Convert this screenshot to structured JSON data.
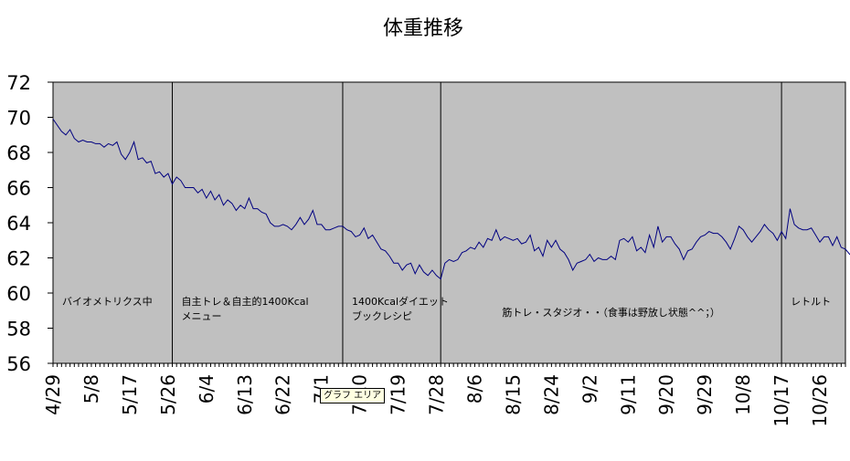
{
  "chart_data": {
    "type": "line",
    "title": "体重推移",
    "ylim": [
      56,
      72
    ],
    "yticks": [
      56,
      58,
      60,
      62,
      64,
      66,
      68,
      70,
      72
    ],
    "x_tick_labels": [
      "4/29",
      "5/8",
      "5/17",
      "5/26",
      "6/4",
      "6/13",
      "6/22",
      "7/1",
      "7/10",
      "7/19",
      "7/28",
      "8/6",
      "8/15",
      "8/24",
      "9/2",
      "9/11",
      "9/20",
      "9/29",
      "10/8",
      "10/17",
      "10/26"
    ],
    "x_start": "4/29",
    "x_end": "11/1",
    "grid": false,
    "plot_background": "#c0c0c0",
    "line_color": "#000080",
    "phases": [
      {
        "label_lines": [
          "バイオメトリクス中"
        ],
        "start": "4/29"
      },
      {
        "label_lines": [
          "自主トレ＆自主的1400Kcal",
          "メニュー"
        ],
        "start": "5/27"
      },
      {
        "label_lines": [
          "1400Kcalダイエット",
          "ブックレシピ"
        ],
        "start": "7/6"
      },
      {
        "label_lines": [
          "筋トレ・スタジオ・・（食事は野放し状態^^；）"
        ],
        "start": "7/29"
      },
      {
        "label_lines": [
          "レトルト"
        ],
        "start": "10/17"
      }
    ],
    "series": [
      {
        "values": [
          [
            0,
            69.9
          ],
          [
            2,
            69.2
          ],
          [
            3,
            69.0
          ],
          [
            4,
            69.3
          ],
          [
            5,
            68.8
          ],
          [
            6,
            68.6
          ],
          [
            7,
            68.7
          ],
          [
            8,
            68.6
          ],
          [
            9,
            68.6
          ],
          [
            10,
            68.5
          ],
          [
            11,
            68.5
          ],
          [
            12,
            68.3
          ],
          [
            13,
            68.5
          ],
          [
            14,
            68.4
          ],
          [
            15,
            68.6
          ],
          [
            16,
            67.9
          ],
          [
            17,
            67.6
          ],
          [
            18,
            68.0
          ],
          [
            19,
            68.6
          ],
          [
            20,
            67.6
          ],
          [
            21,
            67.7
          ],
          [
            22,
            67.4
          ],
          [
            23,
            67.5
          ],
          [
            24,
            66.8
          ],
          [
            25,
            66.9
          ],
          [
            26,
            66.6
          ],
          [
            27,
            66.8
          ],
          [
            28,
            66.2
          ],
          [
            29,
            66.6
          ],
          [
            30,
            66.4
          ],
          [
            31,
            66.0
          ],
          [
            32,
            66.0
          ],
          [
            33,
            66.0
          ],
          [
            34,
            65.7
          ],
          [
            35,
            65.9
          ],
          [
            36,
            65.4
          ],
          [
            37,
            65.8
          ],
          [
            38,
            65.3
          ],
          [
            39,
            65.6
          ],
          [
            40,
            65.0
          ],
          [
            41,
            65.3
          ],
          [
            42,
            65.1
          ],
          [
            43,
            64.7
          ],
          [
            44,
            65.0
          ],
          [
            45,
            64.8
          ],
          [
            46,
            65.4
          ],
          [
            47,
            64.8
          ],
          [
            48,
            64.8
          ],
          [
            49,
            64.6
          ],
          [
            50,
            64.5
          ],
          [
            51,
            64.0
          ],
          [
            52,
            63.8
          ],
          [
            53,
            63.8
          ],
          [
            54,
            63.9
          ],
          [
            55,
            63.8
          ],
          [
            56,
            63.6
          ],
          [
            57,
            63.9
          ],
          [
            58,
            64.3
          ],
          [
            59,
            63.9
          ],
          [
            60,
            64.2
          ],
          [
            61,
            64.7
          ],
          [
            62,
            63.9
          ],
          [
            63,
            63.9
          ],
          [
            64,
            63.6
          ],
          [
            65,
            63.6
          ],
          [
            66,
            63.7
          ],
          [
            67,
            63.8
          ],
          [
            68,
            63.8
          ],
          [
            69,
            63.6
          ],
          [
            70,
            63.5
          ],
          [
            71,
            63.2
          ],
          [
            72,
            63.3
          ],
          [
            73,
            63.7
          ],
          [
            74,
            63.1
          ],
          [
            75,
            63.3
          ],
          [
            76,
            62.9
          ],
          [
            77,
            62.5
          ],
          [
            78,
            62.4
          ],
          [
            79,
            62.1
          ],
          [
            80,
            61.7
          ],
          [
            81,
            61.7
          ],
          [
            82,
            61.3
          ],
          [
            83,
            61.6
          ],
          [
            84,
            61.7
          ],
          [
            85,
            61.1
          ],
          [
            86,
            61.6
          ],
          [
            87,
            61.2
          ],
          [
            88,
            61.0
          ],
          [
            89,
            61.3
          ],
          [
            90,
            61.0
          ],
          [
            91,
            60.8
          ],
          [
            92,
            61.7
          ],
          [
            93,
            61.9
          ],
          [
            94,
            61.8
          ],
          [
            95,
            61.9
          ],
          [
            96,
            62.3
          ],
          [
            97,
            62.4
          ],
          [
            98,
            62.6
          ],
          [
            99,
            62.5
          ],
          [
            100,
            62.9
          ],
          [
            101,
            62.6
          ],
          [
            102,
            63.1
          ],
          [
            103,
            63.0
          ],
          [
            104,
            63.6
          ],
          [
            105,
            63.0
          ],
          [
            106,
            63.2
          ],
          [
            107,
            63.1
          ],
          [
            108,
            63.0
          ],
          [
            109,
            63.1
          ],
          [
            110,
            62.8
          ],
          [
            111,
            62.9
          ],
          [
            112,
            63.3
          ],
          [
            113,
            62.4
          ],
          [
            114,
            62.6
          ],
          [
            115,
            62.1
          ],
          [
            116,
            63.0
          ],
          [
            117,
            62.6
          ],
          [
            118,
            63.0
          ],
          [
            119,
            62.5
          ],
          [
            120,
            62.3
          ],
          [
            121,
            61.9
          ],
          [
            122,
            61.3
          ],
          [
            123,
            61.7
          ],
          [
            124,
            61.8
          ],
          [
            125,
            61.9
          ],
          [
            126,
            62.2
          ],
          [
            127,
            61.8
          ],
          [
            128,
            62.0
          ],
          [
            129,
            61.9
          ],
          [
            130,
            61.9
          ],
          [
            131,
            62.1
          ],
          [
            132,
            61.9
          ],
          [
            133,
            63.0
          ],
          [
            134,
            63.1
          ],
          [
            135,
            62.9
          ],
          [
            136,
            63.2
          ],
          [
            137,
            62.4
          ],
          [
            138,
            62.6
          ],
          [
            139,
            62.3
          ],
          [
            140,
            63.3
          ],
          [
            141,
            62.6
          ],
          [
            142,
            63.8
          ],
          [
            143,
            62.9
          ],
          [
            144,
            63.2
          ],
          [
            145,
            63.2
          ],
          [
            146,
            62.8
          ],
          [
            147,
            62.5
          ],
          [
            148,
            61.9
          ],
          [
            149,
            62.4
          ],
          [
            150,
            62.5
          ],
          [
            151,
            62.9
          ],
          [
            152,
            63.2
          ],
          [
            153,
            63.3
          ],
          [
            154,
            63.5
          ],
          [
            155,
            63.4
          ],
          [
            156,
            63.4
          ],
          [
            157,
            63.2
          ],
          [
            158,
            62.9
          ],
          [
            159,
            62.5
          ],
          [
            160,
            63.1
          ],
          [
            161,
            63.8
          ],
          [
            162,
            63.6
          ],
          [
            163,
            63.2
          ],
          [
            164,
            62.9
          ],
          [
            165,
            63.2
          ],
          [
            166,
            63.5
          ],
          [
            167,
            63.9
          ],
          [
            168,
            63.6
          ],
          [
            169,
            63.4
          ],
          [
            170,
            63.0
          ],
          [
            171,
            63.5
          ],
          [
            172,
            63.1
          ],
          [
            173,
            64.8
          ],
          [
            174,
            63.9
          ],
          [
            175,
            63.7
          ],
          [
            176,
            63.6
          ],
          [
            177,
            63.6
          ],
          [
            178,
            63.7
          ],
          [
            179,
            63.3
          ],
          [
            180,
            62.9
          ],
          [
            181,
            63.2
          ],
          [
            182,
            63.2
          ],
          [
            183,
            62.7
          ],
          [
            184,
            63.2
          ],
          [
            185,
            62.6
          ],
          [
            186,
            62.5
          ],
          [
            187,
            62.2
          ],
          [
            188,
            62.3
          ],
          [
            189,
            62.0
          ],
          [
            190,
            62.0
          ]
        ]
      }
    ]
  },
  "tooltip": {
    "text": "グラフ エリア"
  }
}
